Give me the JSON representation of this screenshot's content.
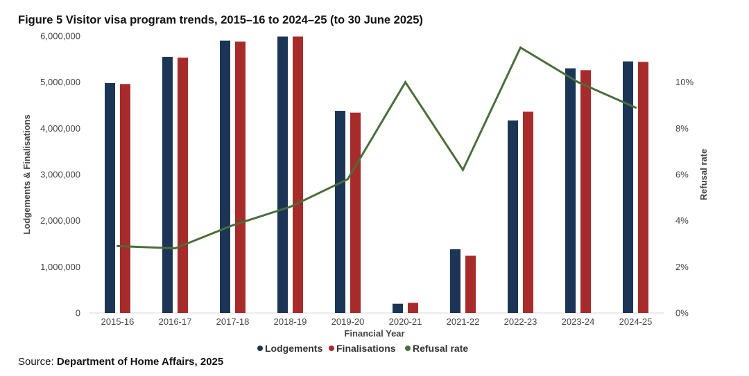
{
  "figure_title": "Figure 5 Visitor visa program trends, 2015–16 to 2024–25 (to 30 June 2025)",
  "source": {
    "prefix": "Source: ",
    "text": "Department of Home Affairs, 2025"
  },
  "colors": {
    "lodgements": "#1c3557",
    "finalisations": "#a72b2a",
    "refusal": "#4a6e3a",
    "axis_text": "#444444",
    "grid": "#d9d9d9"
  },
  "chart_data": {
    "type": "bar",
    "title": "Figure 5 Visitor visa program trends, 2015–16 to 2024–25 (to 30 June 2025)",
    "xlabel": "Financial Year",
    "ylabel": "Lodgements & Finalisations",
    "y2label": "Refusal rate",
    "categories": [
      "2015-16",
      "2016-17",
      "2017-18",
      "2018-19",
      "2019-20",
      "2020-21",
      "2021-22",
      "2022-23",
      "2023-24",
      "2024-25"
    ],
    "series": [
      {
        "name": "Lodgements",
        "type": "bar",
        "axis": "left",
        "values": [
          4980000,
          5550000,
          5900000,
          5990000,
          4380000,
          200000,
          1380000,
          4170000,
          5300000,
          5450000
        ]
      },
      {
        "name": "Finalisations",
        "type": "bar",
        "axis": "left",
        "values": [
          4960000,
          5530000,
          5880000,
          5990000,
          4340000,
          220000,
          1240000,
          4360000,
          5260000,
          5440000
        ]
      },
      {
        "name": "Refusal rate",
        "type": "line",
        "axis": "right",
        "values": [
          2.9,
          2.8,
          3.8,
          4.6,
          5.8,
          10.0,
          6.2,
          11.5,
          10.0,
          8.9
        ]
      }
    ],
    "ylim": [
      0,
      6000000
    ],
    "yticks": [
      0,
      1000000,
      2000000,
      3000000,
      4000000,
      5000000,
      6000000
    ],
    "ytick_labels": [
      "0",
      "1,000,000",
      "2,000,000",
      "3,000,000",
      "4,000,000",
      "5,000,000",
      "6,000,000"
    ],
    "y2lim": [
      0,
      12
    ],
    "y2ticks": [
      0,
      2,
      4,
      6,
      8,
      10
    ],
    "y2tick_labels": [
      "0%",
      "2%",
      "4%",
      "6%",
      "8%",
      "10%"
    ],
    "legend_position": "bottom-center",
    "grid": false
  }
}
